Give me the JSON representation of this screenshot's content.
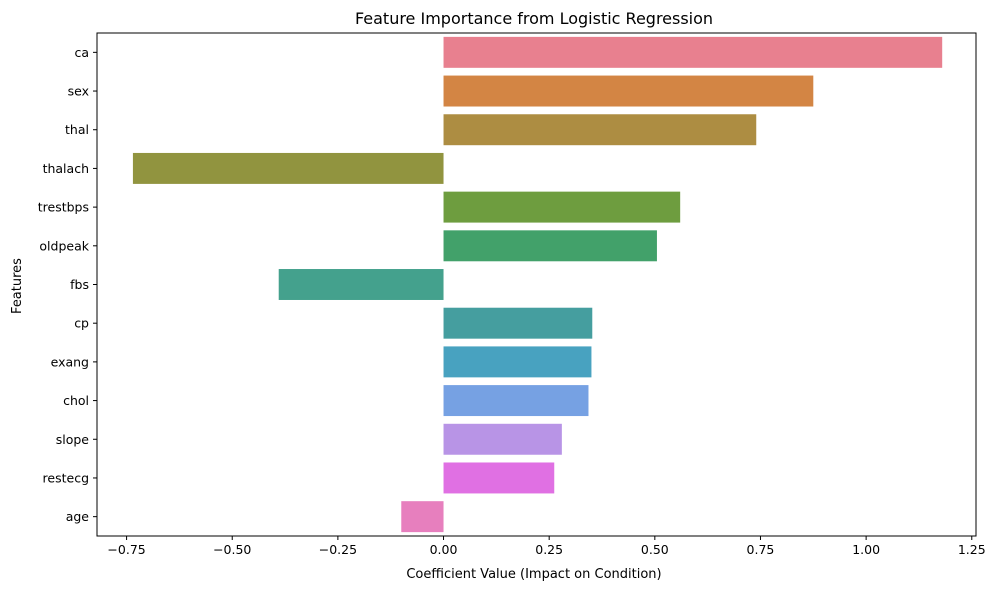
{
  "chart_data": {
    "type": "bar",
    "orientation": "horizontal",
    "title": "Feature Importance from Logistic Regression",
    "xlabel": "Coefficient Value (Impact on Condition)",
    "ylabel": "Features",
    "categories": [
      "ca",
      "sex",
      "thal",
      "thalach",
      "trestbps",
      "oldpeak",
      "fbs",
      "cp",
      "exang",
      "chol",
      "slope",
      "restecg",
      "age"
    ],
    "values": [
      1.18,
      0.875,
      0.74,
      -0.735,
      0.56,
      0.505,
      -0.39,
      0.352,
      0.35,
      0.343,
      0.28,
      0.262,
      -0.1
    ],
    "colors": [
      "#e8808f",
      "#d38544",
      "#ad8d42",
      "#91943f",
      "#6e9d3f",
      "#42a16a",
      "#44a18d",
      "#459e9f",
      "#48a2c0",
      "#76a1e3",
      "#b894e6",
      "#e070e3",
      "#e77fbe"
    ],
    "xlim": [
      -0.82,
      1.26
    ],
    "xticks": [
      -0.75,
      -0.5,
      -0.25,
      0.0,
      0.25,
      0.5,
      0.75,
      1.0,
      1.25
    ],
    "xtick_labels": [
      "−0.75",
      "−0.50",
      "−0.25",
      "0.00",
      "0.25",
      "0.50",
      "0.75",
      "1.00",
      "1.25"
    ],
    "grid": false,
    "legend": "none"
  }
}
